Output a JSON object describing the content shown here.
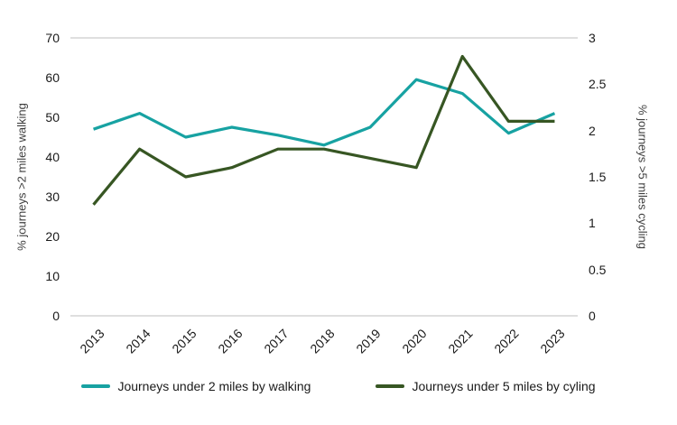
{
  "chart_data": {
    "type": "line",
    "categories": [
      "2013",
      "2014",
      "2015",
      "2016",
      "2017",
      "2018",
      "2019",
      "2020",
      "2021",
      "2022",
      "2023"
    ],
    "series": [
      {
        "name": "Journeys under 2 miles by walking",
        "axis": "left",
        "color": "#17A2A2",
        "values": [
          47,
          51,
          45,
          47.5,
          45.5,
          43,
          47.5,
          59.5,
          56,
          46,
          51
        ]
      },
      {
        "name": "Journeys under 5 miles by cyling",
        "axis": "right",
        "color": "#375623",
        "values": [
          1.2,
          1.8,
          1.5,
          1.6,
          1.8,
          1.8,
          1.7,
          1.6,
          2.8,
          2.1,
          2.1
        ]
      }
    ],
    "left_axis": {
      "label": "% journeys >2 miles walking",
      "min": 0,
      "max": 70,
      "step": 10,
      "ticks": [
        "0",
        "10",
        "20",
        "30",
        "40",
        "50",
        "60",
        "70"
      ]
    },
    "right_axis": {
      "label": "% journeys >5 miles cycling",
      "min": 0,
      "max": 3,
      "step": 0.5,
      "ticks": [
        "0",
        "0.5",
        "1",
        "1.5",
        "2",
        "2.5",
        "3"
      ]
    },
    "title": "",
    "grid": "top-border-and-baseline-only",
    "legend_position": "bottom",
    "axis_line_color": "#BFBFBF",
    "text_color": "#1a1a1a"
  }
}
